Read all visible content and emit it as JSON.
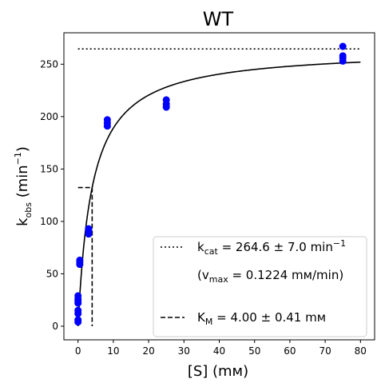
{
  "chart_data": {
    "type": "scatter",
    "title": "WT",
    "xlabel": {
      "main": "[S] (mм)"
    },
    "ylabel": {
      "main": "k",
      "sub": "obs",
      "rest": " (min",
      "sup": "−1",
      "close": ")"
    },
    "xlim": [
      -4,
      84
    ],
    "ylim": [
      -13,
      280
    ],
    "xticks": [
      0,
      10,
      20,
      30,
      40,
      50,
      60,
      70,
      80
    ],
    "yticks": [
      0,
      50,
      100,
      150,
      200,
      250
    ],
    "grid": false,
    "legend_position": "bottom-right",
    "points": {
      "color": "#0000ff",
      "x": [
        0,
        0,
        0,
        0,
        0,
        0,
        0,
        0,
        0.5,
        0.5,
        0.5,
        3,
        3,
        3,
        8.3,
        8.3,
        8.3,
        25,
        25,
        25,
        75,
        75,
        75,
        75
      ],
      "y": [
        4,
        6,
        12,
        15,
        22,
        24,
        26,
        29,
        59,
        61,
        63,
        88,
        91,
        93,
        191,
        194,
        197,
        209,
        212,
        216,
        253,
        256,
        258,
        267
      ]
    },
    "fit_curve": {
      "kcat": 264.6,
      "KM": 4.0,
      "x_start": 0,
      "x_end": 80,
      "color": "#000000"
    },
    "kcat_line": {
      "y": 264.6,
      "x_start": 0,
      "x_end": 80
    },
    "KM_marker": {
      "x": 4.0,
      "y": 132.3,
      "x_start": 0
    },
    "legend": [
      {
        "style": "dotted",
        "prefix": "k",
        "sub": "cat",
        "text": " = 264.6 ± 7.0 min",
        "sup": "−1"
      },
      {
        "style": "none",
        "prefix": "(v",
        "sub": "max",
        "text": " = 0.1224 mм/min)",
        "sup": ""
      },
      {
        "style": "blank",
        "prefix": "",
        "sub": "",
        "text": "",
        "sup": ""
      },
      {
        "style": "dashed",
        "prefix": "K",
        "sub": "M",
        "text": " = 4.00 ± 0.41 mм",
        "sup": ""
      }
    ]
  }
}
